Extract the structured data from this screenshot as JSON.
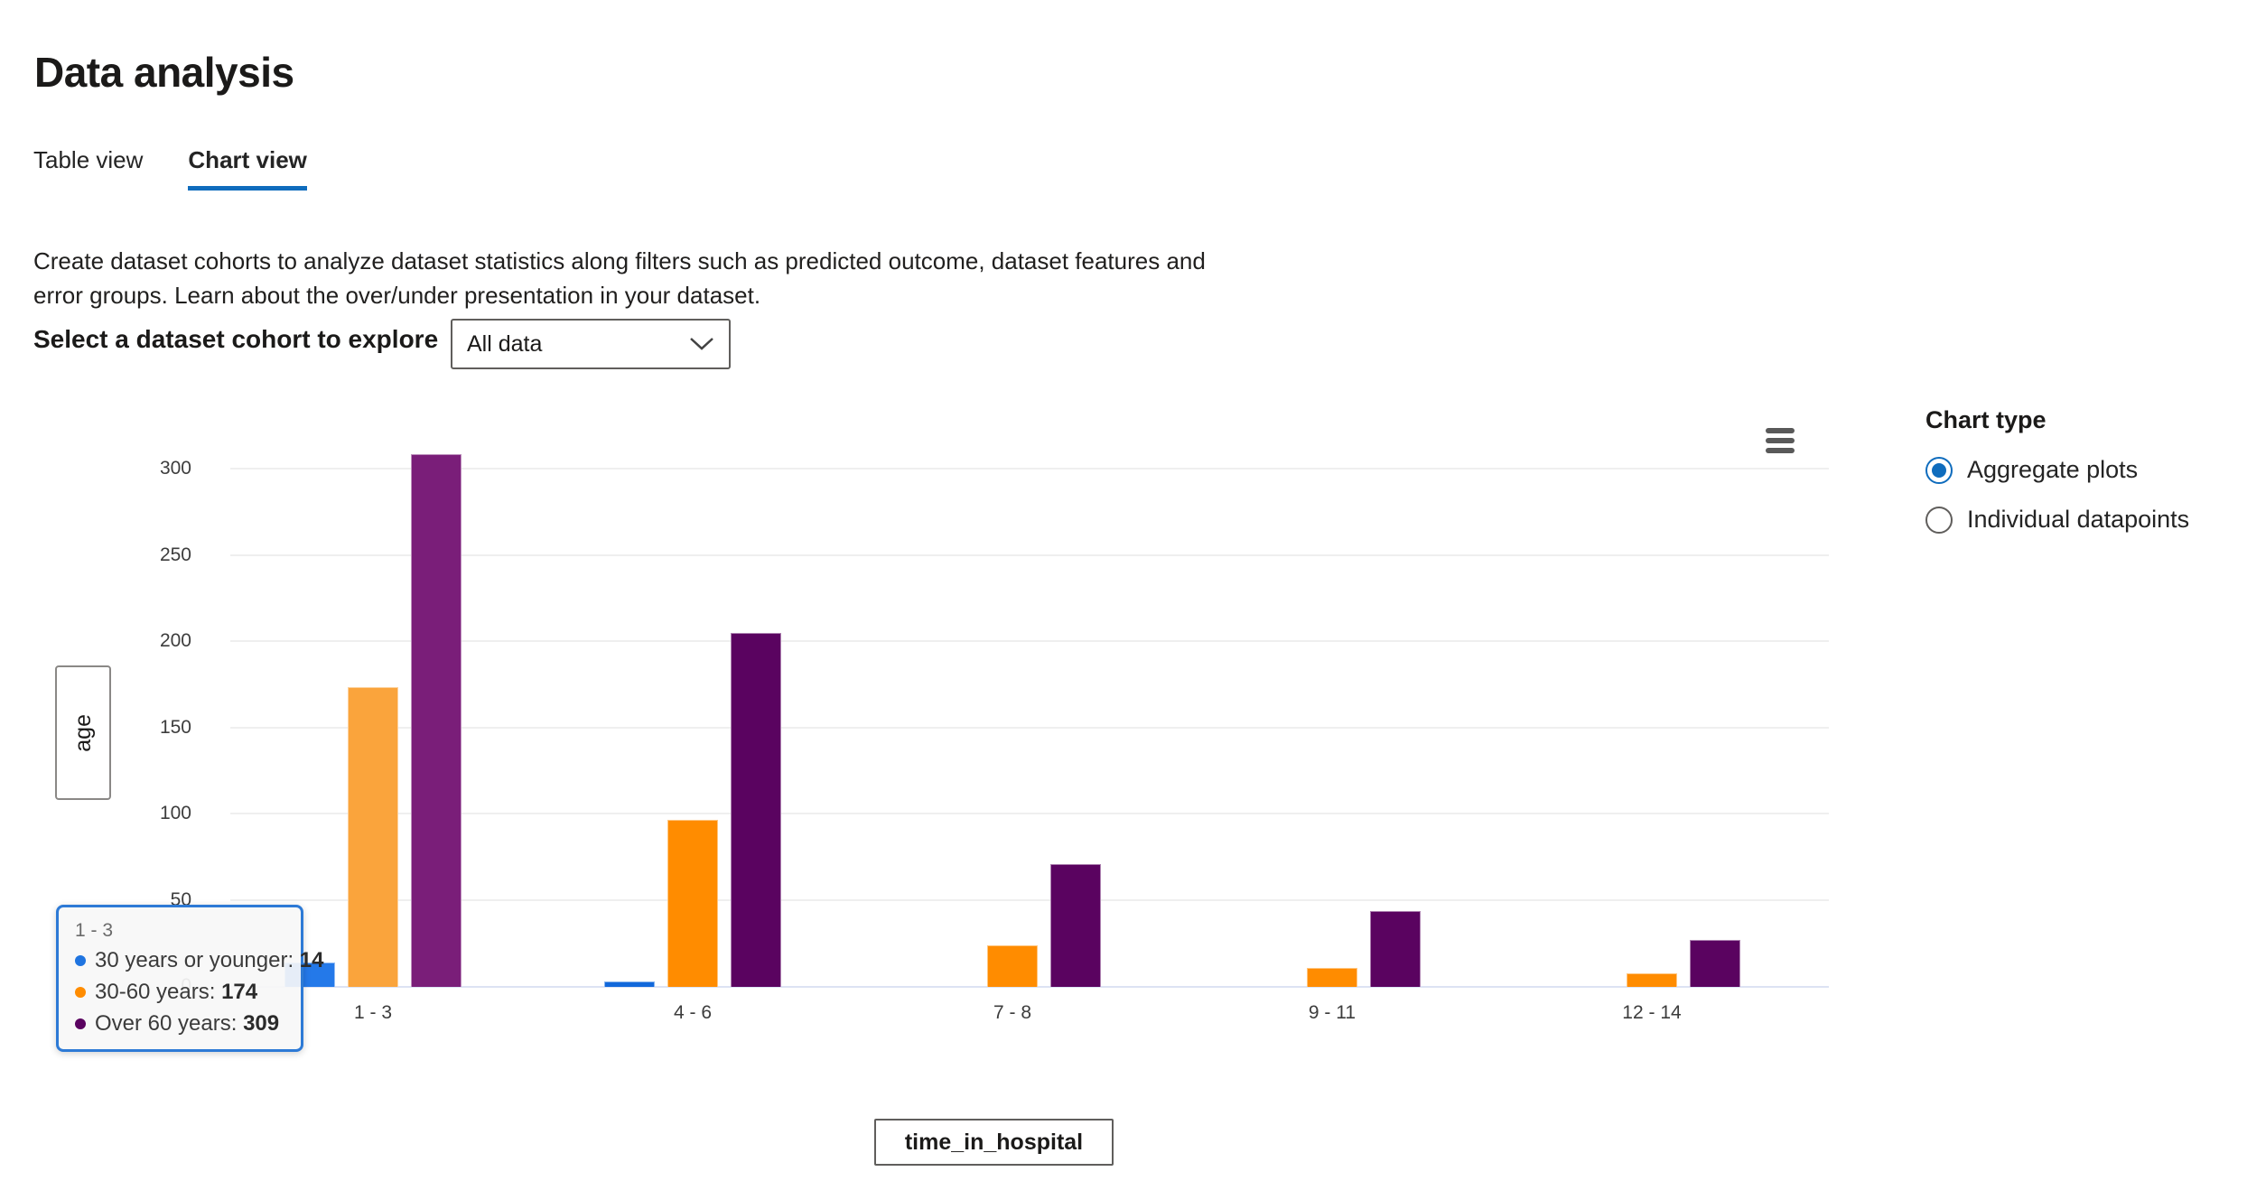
{
  "page": {
    "title": "Data analysis"
  },
  "tabs": {
    "items": [
      {
        "label": "Table view",
        "active": false
      },
      {
        "label": "Chart view",
        "active": true
      }
    ]
  },
  "description": "Create dataset cohorts to analyze dataset statistics along filters such as predicted outcome, dataset features and error groups. Learn about the over/under presentation in your dataset.",
  "cohort_selector": {
    "label": "Select a dataset cohort to explore",
    "value": "All data"
  },
  "chart_type_panel": {
    "title": "Chart type",
    "options": [
      {
        "label": "Aggregate plots",
        "selected": true
      },
      {
        "label": "Individual datapoints",
        "selected": false
      }
    ]
  },
  "chart_data": {
    "type": "bar",
    "title": "",
    "categories": [
      "1 - 3",
      "4 - 6",
      "7 - 8",
      "9 - 11",
      "12 - 14"
    ],
    "series": [
      {
        "name": "30 years or younger",
        "color": "#1168DB",
        "highlight_color": "#2479E9",
        "values": [
          14,
          3,
          0,
          0,
          0
        ]
      },
      {
        "name": "30-60 years",
        "color": "#FF8C00",
        "highlight_color": "#FAA43C",
        "values": [
          174,
          97,
          24,
          11,
          8
        ]
      },
      {
        "name": "Over 60 years",
        "color": "#5A0360",
        "highlight_color": "#7A1E79",
        "values": [
          309,
          205,
          71,
          44,
          27
        ]
      }
    ],
    "xlabel": "time_in_hospital",
    "ylabel": "age",
    "ylim": [
      0,
      331
    ],
    "yticks": [
      0,
      50,
      100,
      150,
      200,
      250,
      300
    ],
    "grid": true,
    "legend_position": "none",
    "highlighted_category": "1 - 3"
  },
  "tooltip": {
    "header": "1 - 3",
    "items": [
      {
        "label": "30 years or younger",
        "value": "14",
        "color": "#1F74E0"
      },
      {
        "label": "30-60 years",
        "value": "174",
        "color": "#FF8C00"
      },
      {
        "label": "Over 60 years",
        "value": "309",
        "color": "#5A0360"
      }
    ]
  },
  "icons": {
    "dropdown_chevron": "chevron-down-icon",
    "chart_menu": "hamburger-menu-icon"
  },
  "colors": {
    "accent": "#0F6CBD",
    "tab_underline": "#0F6CBD",
    "tooltip_border": "#2D7AD6",
    "axis_line": "#DDE3F3",
    "gridline": "#EFEFEF"
  }
}
